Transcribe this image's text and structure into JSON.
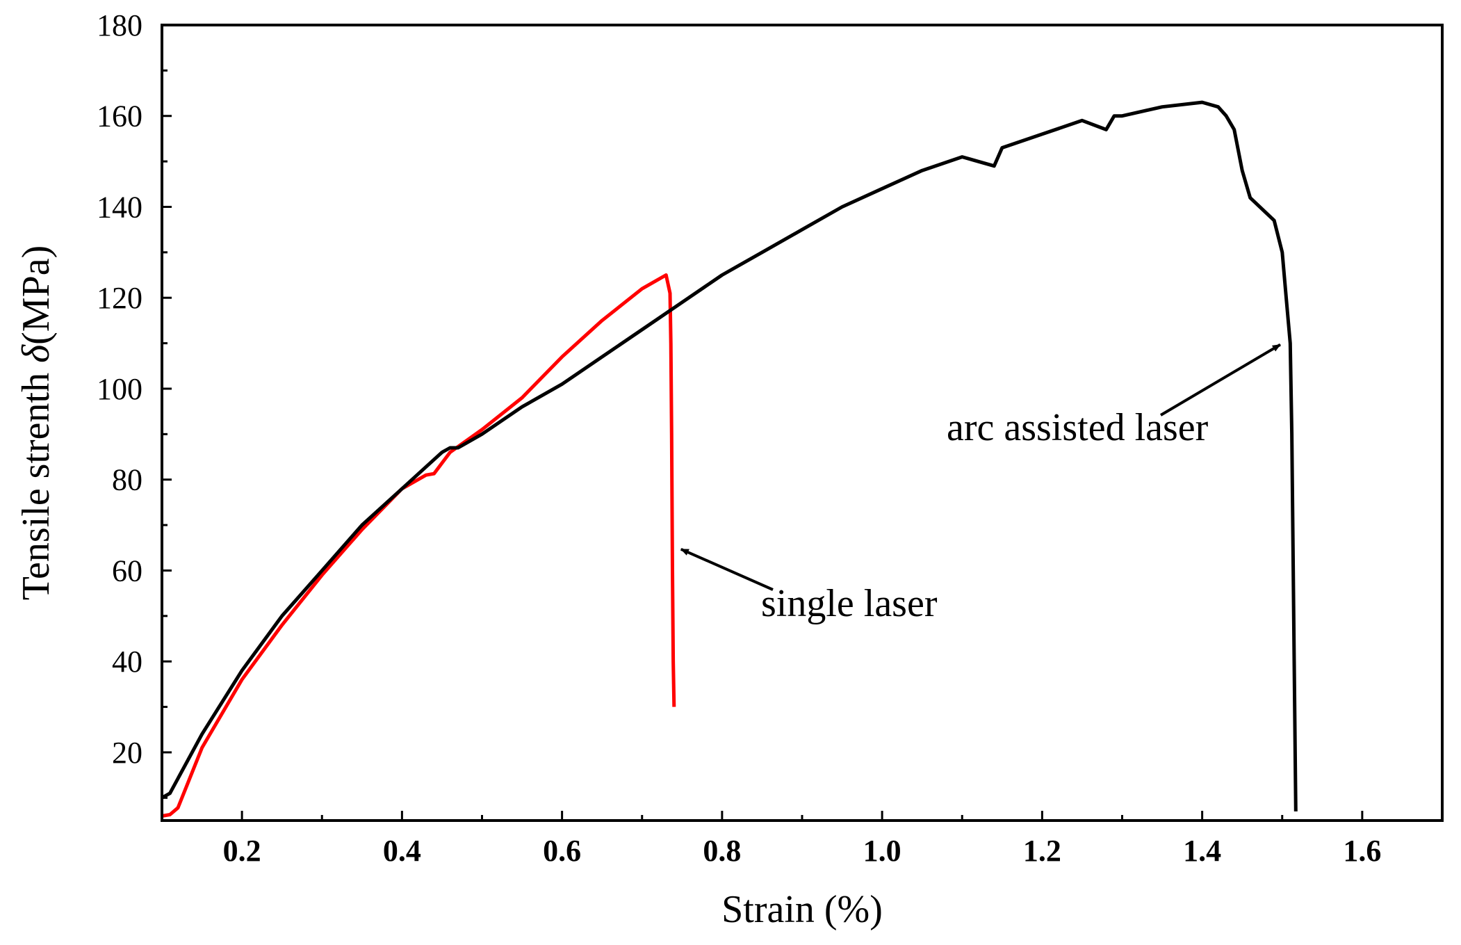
{
  "chart_data": {
    "type": "line",
    "title": "",
    "xlabel": "Strain (%)",
    "ylabel_parts": [
      "Tensile strenth ",
      "δ",
      "(MPa)"
    ],
    "xlim": [
      0.1,
      1.7
    ],
    "ylim": [
      5,
      180
    ],
    "x_ticks": [
      0.2,
      0.4,
      0.6,
      0.8,
      1.0,
      1.2,
      1.4,
      1.6
    ],
    "x_tick_labels": [
      "0.2",
      "0.4",
      "0.6",
      "0.8",
      "1.0",
      "1.2",
      "1.4",
      "1.6"
    ],
    "y_ticks": [
      20,
      40,
      60,
      80,
      100,
      120,
      140,
      160,
      180
    ],
    "y_tick_labels": [
      "20",
      "40",
      "60",
      "80",
      "100",
      "120",
      "140",
      "160",
      "180"
    ],
    "grid": false,
    "series": [
      {
        "name": "single laser",
        "color": "#ff0000",
        "x": [
          0.1,
          0.11,
          0.12,
          0.15,
          0.2,
          0.25,
          0.3,
          0.35,
          0.4,
          0.43,
          0.44,
          0.46,
          0.5,
          0.55,
          0.6,
          0.65,
          0.7,
          0.72,
          0.73,
          0.735,
          0.736,
          0.737,
          0.738,
          0.739,
          0.74
        ],
        "y": [
          6,
          6.3,
          7.8,
          21,
          36,
          48,
          59,
          69,
          78,
          81,
          81.3,
          86,
          91,
          98,
          107,
          115,
          122,
          124,
          125,
          121,
          110,
          90,
          60,
          40,
          30
        ]
      },
      {
        "name": "arc assisted laser",
        "color": "#000000",
        "x": [
          0.1,
          0.11,
          0.15,
          0.2,
          0.25,
          0.3,
          0.35,
          0.4,
          0.45,
          0.46,
          0.47,
          0.5,
          0.55,
          0.6,
          0.65,
          0.7,
          0.75,
          0.8,
          0.85,
          0.9,
          0.95,
          1.0,
          1.05,
          1.1,
          1.14,
          1.15,
          1.2,
          1.25,
          1.28,
          1.29,
          1.3,
          1.35,
          1.4,
          1.42,
          1.43,
          1.44,
          1.45,
          1.46,
          1.49,
          1.5,
          1.505,
          1.51,
          1.512,
          1.515,
          1.517
        ],
        "y": [
          10,
          11,
          24,
          38,
          50,
          60,
          70,
          78,
          86,
          87,
          87,
          90,
          96,
          101,
          107,
          113,
          119,
          125,
          130,
          135,
          140,
          144,
          148,
          151,
          149,
          153,
          156,
          159,
          157,
          160,
          160,
          162,
          163,
          162,
          160,
          157,
          148,
          142,
          137,
          130,
          120,
          110,
          90,
          40,
          7
        ]
      }
    ],
    "annotations": [
      {
        "text": "single laser",
        "target": [
          0.74,
          65
        ]
      },
      {
        "text": "arc assisted laser",
        "target": [
          1.508,
          110
        ]
      }
    ]
  }
}
